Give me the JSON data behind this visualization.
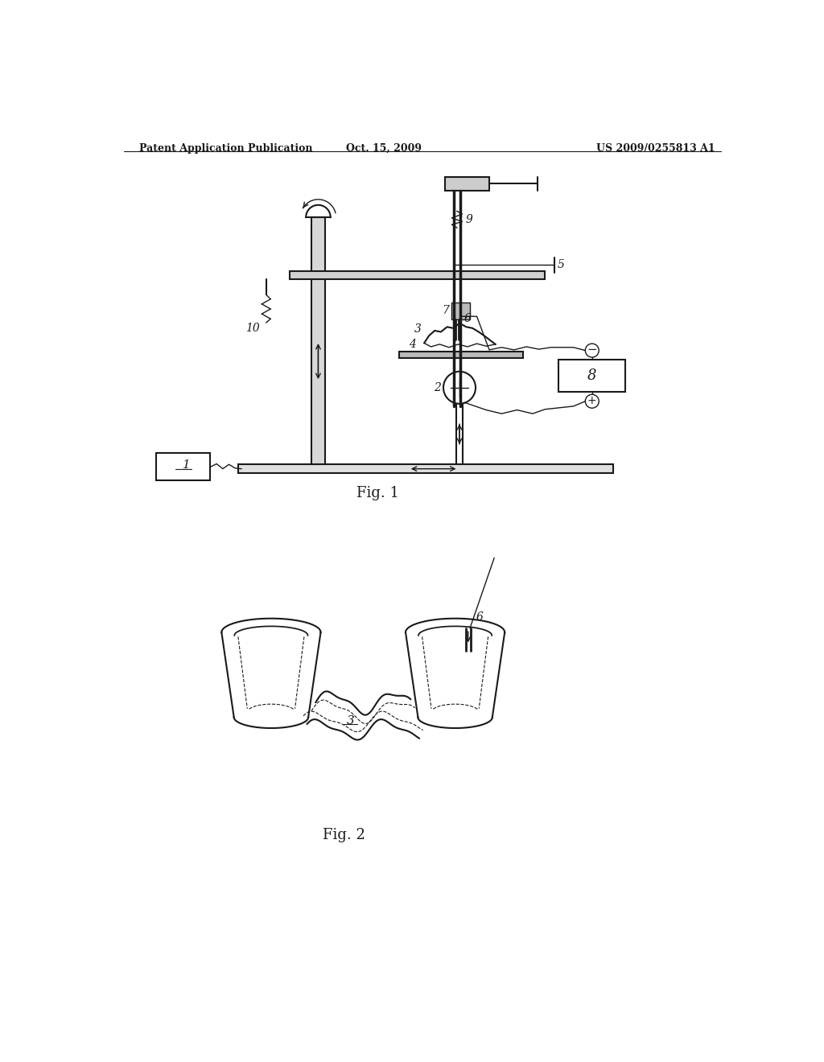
{
  "bg_color": "#ffffff",
  "header_left": "Patent Application Publication",
  "header_center": "Oct. 15, 2009",
  "header_right": "US 2009/0255813 A1",
  "fig1_label": "Fig. 1",
  "fig2_label": "Fig. 2",
  "line_color": "#1a1a1a",
  "label_color": "#1a1a1a"
}
